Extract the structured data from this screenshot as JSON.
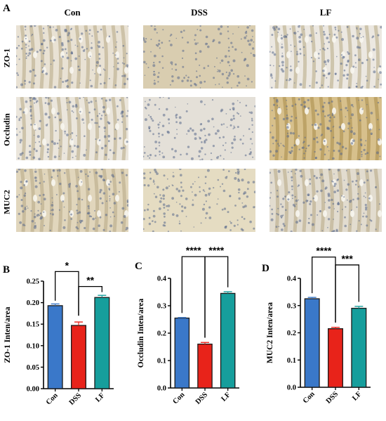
{
  "panels": {
    "a": "A",
    "b": "B",
    "c": "C",
    "d": "D"
  },
  "columns": [
    "Con",
    "DSS",
    "LF"
  ],
  "rows": [
    "ZO-1",
    "Occludin",
    "MUC2"
  ],
  "colors": {
    "Con": "#3a78c9",
    "DSS": "#e8231a",
    "LF": "#169e9c"
  },
  "chart_data": [
    {
      "type": "bar",
      "panel": "B",
      "categories": [
        "Con",
        "DSS",
        "LF"
      ],
      "values": [
        0.193,
        0.147,
        0.212
      ],
      "errors": [
        0.004,
        0.008,
        0.005
      ],
      "ylabel": "ZO-1 Inten/area",
      "ylim": [
        0,
        0.25
      ],
      "yticks": [
        "0.00",
        "0.05",
        "0.10",
        "0.15",
        "0.20",
        "0.25"
      ],
      "significance": [
        {
          "from": 0,
          "to": 1,
          "label": "*"
        },
        {
          "from": 1,
          "to": 2,
          "label": "**"
        }
      ]
    },
    {
      "type": "bar",
      "panel": "C",
      "categories": [
        "Con",
        "DSS",
        "LF"
      ],
      "values": [
        0.255,
        0.16,
        0.345
      ],
      "errors": [
        0.002,
        0.006,
        0.006
      ],
      "ylabel": "Occludin Inten/area",
      "ylim": [
        0,
        0.4
      ],
      "yticks": [
        "0.0",
        "0.1",
        "0.2",
        "0.3",
        "0.4"
      ],
      "significance": [
        {
          "from": 0,
          "to": 1,
          "label": "****"
        },
        {
          "from": 1,
          "to": 2,
          "label": "****"
        }
      ]
    },
    {
      "type": "bar",
      "panel": "D",
      "categories": [
        "Con",
        "DSS",
        "LF"
      ],
      "values": [
        0.325,
        0.215,
        0.29
      ],
      "errors": [
        0.005,
        0.005,
        0.007
      ],
      "ylabel": "MUC2 Inten/area",
      "ylim": [
        0,
        0.4
      ],
      "yticks": [
        "0.0",
        "0.1",
        "0.2",
        "0.3",
        "0.4"
      ],
      "significance": [
        {
          "from": 0,
          "to": 1,
          "label": "****"
        },
        {
          "from": 1,
          "to": 2,
          "label": "***"
        }
      ]
    }
  ]
}
